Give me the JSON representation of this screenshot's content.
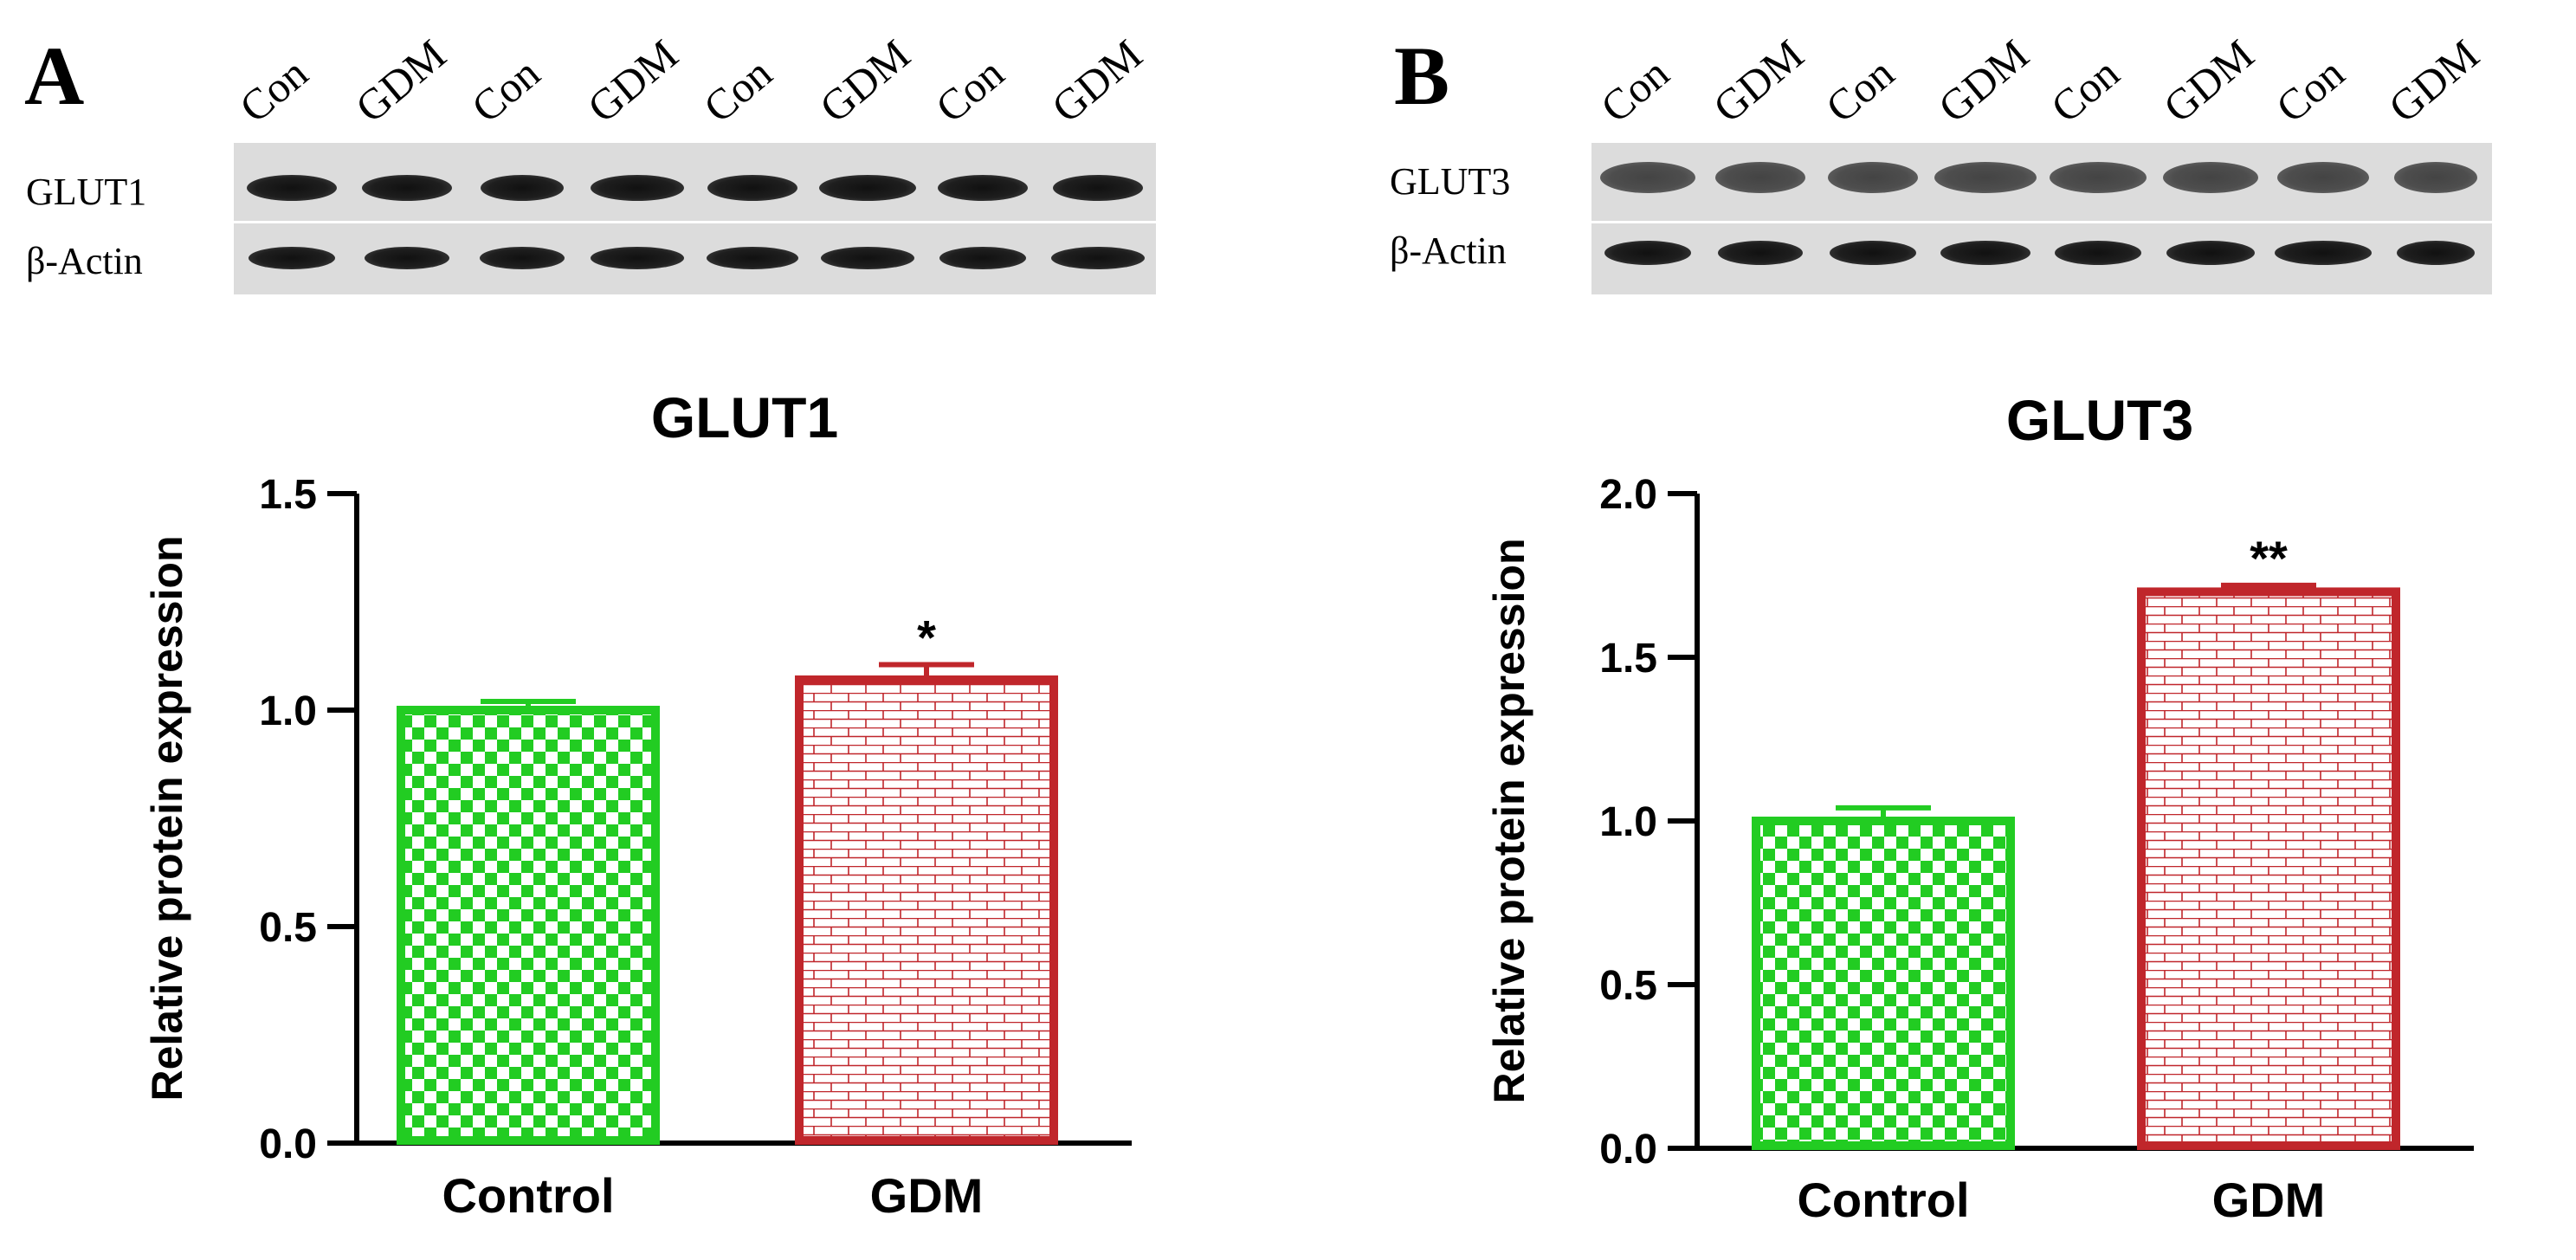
{
  "panels": [
    {
      "letter": "A",
      "blot": {
        "lanes": [
          "Con",
          "GDM",
          "Con",
          "GDM",
          "Con",
          "GDM",
          "Con",
          "GDM"
        ],
        "rows": [
          {
            "label": "GLUT1"
          },
          {
            "label": "β-Actin"
          }
        ]
      }
    },
    {
      "letter": "B",
      "blot": {
        "lanes": [
          "Con",
          "GDM",
          "Con",
          "GDM",
          "Con",
          "GDM",
          "Con",
          "GDM"
        ],
        "rows": [
          {
            "label": "GLUT3"
          },
          {
            "label": "β-Actin"
          }
        ]
      }
    }
  ],
  "chart_data": [
    {
      "type": "bar",
      "title": "GLUT1",
      "ylabel": "Relative protein expression",
      "xlabel": "",
      "categories": [
        "Control",
        "GDM"
      ],
      "values": [
        1.0,
        1.07
      ],
      "errors": [
        0.02,
        0.035
      ],
      "significance": [
        "",
        "*"
      ],
      "ylim": [
        0,
        1.5
      ],
      "yticks": [
        "0.0",
        "0.5",
        "1.0",
        "1.5"
      ],
      "bar_colors": [
        "#22cc22",
        "#c0262b"
      ],
      "bar_patterns": [
        "checker",
        "brick"
      ],
      "grid": false
    },
    {
      "type": "bar",
      "title": "GLUT3",
      "ylabel": "Relative protein expression",
      "xlabel": "",
      "categories": [
        "Control",
        "GDM"
      ],
      "values": [
        1.0,
        1.7
      ],
      "errors": [
        0.04,
        0.02
      ],
      "significance": [
        "",
        "**"
      ],
      "ylim": [
        0,
        2.0
      ],
      "yticks": [
        "0.0",
        "0.5",
        "1.0",
        "1.5",
        "2.0"
      ],
      "bar_colors": [
        "#22cc22",
        "#c0262b"
      ],
      "bar_patterns": [
        "checker",
        "brick"
      ],
      "grid": false
    }
  ]
}
